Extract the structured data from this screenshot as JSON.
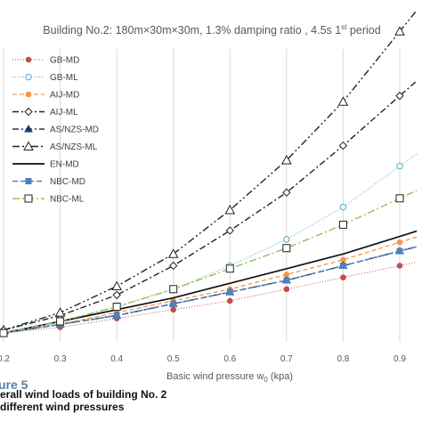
{
  "chart_data": {
    "type": "line",
    "title_parts": {
      "main": "Building No.2: 180m×30m×30m, 1.3% damping ratio , 4.5s 1",
      "sup": "st",
      "tail": " period"
    },
    "xlabel_parts": {
      "main": "Basic wind pressure w",
      "sub": "0",
      "tail": " (kpa)"
    },
    "x": [
      0.2,
      0.3,
      0.4,
      0.5,
      0.6,
      0.7,
      0.8,
      0.9
    ],
    "x_tick_labels": [
      "0.2",
      "0.3",
      "0.4",
      "0.5",
      "0.6",
      "0.7",
      "0.8",
      "0.9"
    ],
    "xlim": [
      0.2,
      0.93
    ],
    "ylim": [
      0,
      10
    ],
    "grid": "vertical",
    "legend_position": "left",
    "series": [
      {
        "name": "GB-MD",
        "color": "#c0504d",
        "dash": "1,2",
        "width": 1,
        "marker": "circle-filled",
        "values": [
          0.3,
          0.5,
          0.8,
          1.1,
          1.4,
          1.8,
          2.2,
          2.6
        ]
      },
      {
        "name": "GB-ML",
        "color": "#4bacc6",
        "dash": "1,2",
        "width": 1,
        "marker": "circle-open",
        "values": [
          0.3,
          0.7,
          1.2,
          1.8,
          2.6,
          3.5,
          4.6,
          6.0
        ]
      },
      {
        "name": "AIJ-MD",
        "color": "#f79646",
        "dash": "5,3",
        "width": 1.3,
        "marker": "circle-filled",
        "values": [
          0.3,
          0.6,
          1.0,
          1.4,
          1.8,
          2.3,
          2.8,
          3.4
        ]
      },
      {
        "name": "AIJ-ML",
        "color": "#222222",
        "dash": "7,3,2,3",
        "width": 1.4,
        "marker": "diamond-open",
        "values": [
          0.4,
          0.9,
          1.6,
          2.6,
          3.8,
          5.1,
          6.7,
          8.4
        ]
      },
      {
        "name": "AS/NZS-MD",
        "color": "#1f3864",
        "dash": "7,3,2,3",
        "width": 1.4,
        "marker": "triangle-filled",
        "values": [
          0.3,
          0.6,
          0.9,
          1.3,
          1.7,
          2.1,
          2.6,
          3.1
        ]
      },
      {
        "name": "AS/NZS-ML",
        "color": "#222222",
        "dash": "8,3,2,3,2,3",
        "width": 1.4,
        "marker": "triangle-open",
        "values": [
          0.4,
          1.0,
          1.9,
          3.0,
          4.5,
          6.2,
          8.2,
          10.6
        ]
      },
      {
        "name": "EN-MD",
        "color": "#111111",
        "dash": "",
        "width": 1.7,
        "marker": "none",
        "values": [
          0.3,
          0.7,
          1.1,
          1.5,
          2.0,
          2.5,
          3.0,
          3.6
        ]
      },
      {
        "name": "NBC-MD",
        "color": "#4f81bd",
        "dash": "6,3",
        "width": 1.6,
        "marker": "square-filled",
        "values": [
          0.3,
          0.6,
          0.9,
          1.3,
          1.7,
          2.1,
          2.6,
          3.1
        ]
      },
      {
        "name": "NBC-ML",
        "color": "#9bbb59",
        "dash": "8,3,2,3",
        "width": 1.4,
        "marker": "square-open",
        "values": [
          0.3,
          0.7,
          1.2,
          1.8,
          2.5,
          3.2,
          4.0,
          4.9
        ]
      }
    ]
  },
  "caption": {
    "figure_label": "ure 5",
    "line1": "erall wind loads of building No. 2",
    "line2": "different wind pressures"
  }
}
